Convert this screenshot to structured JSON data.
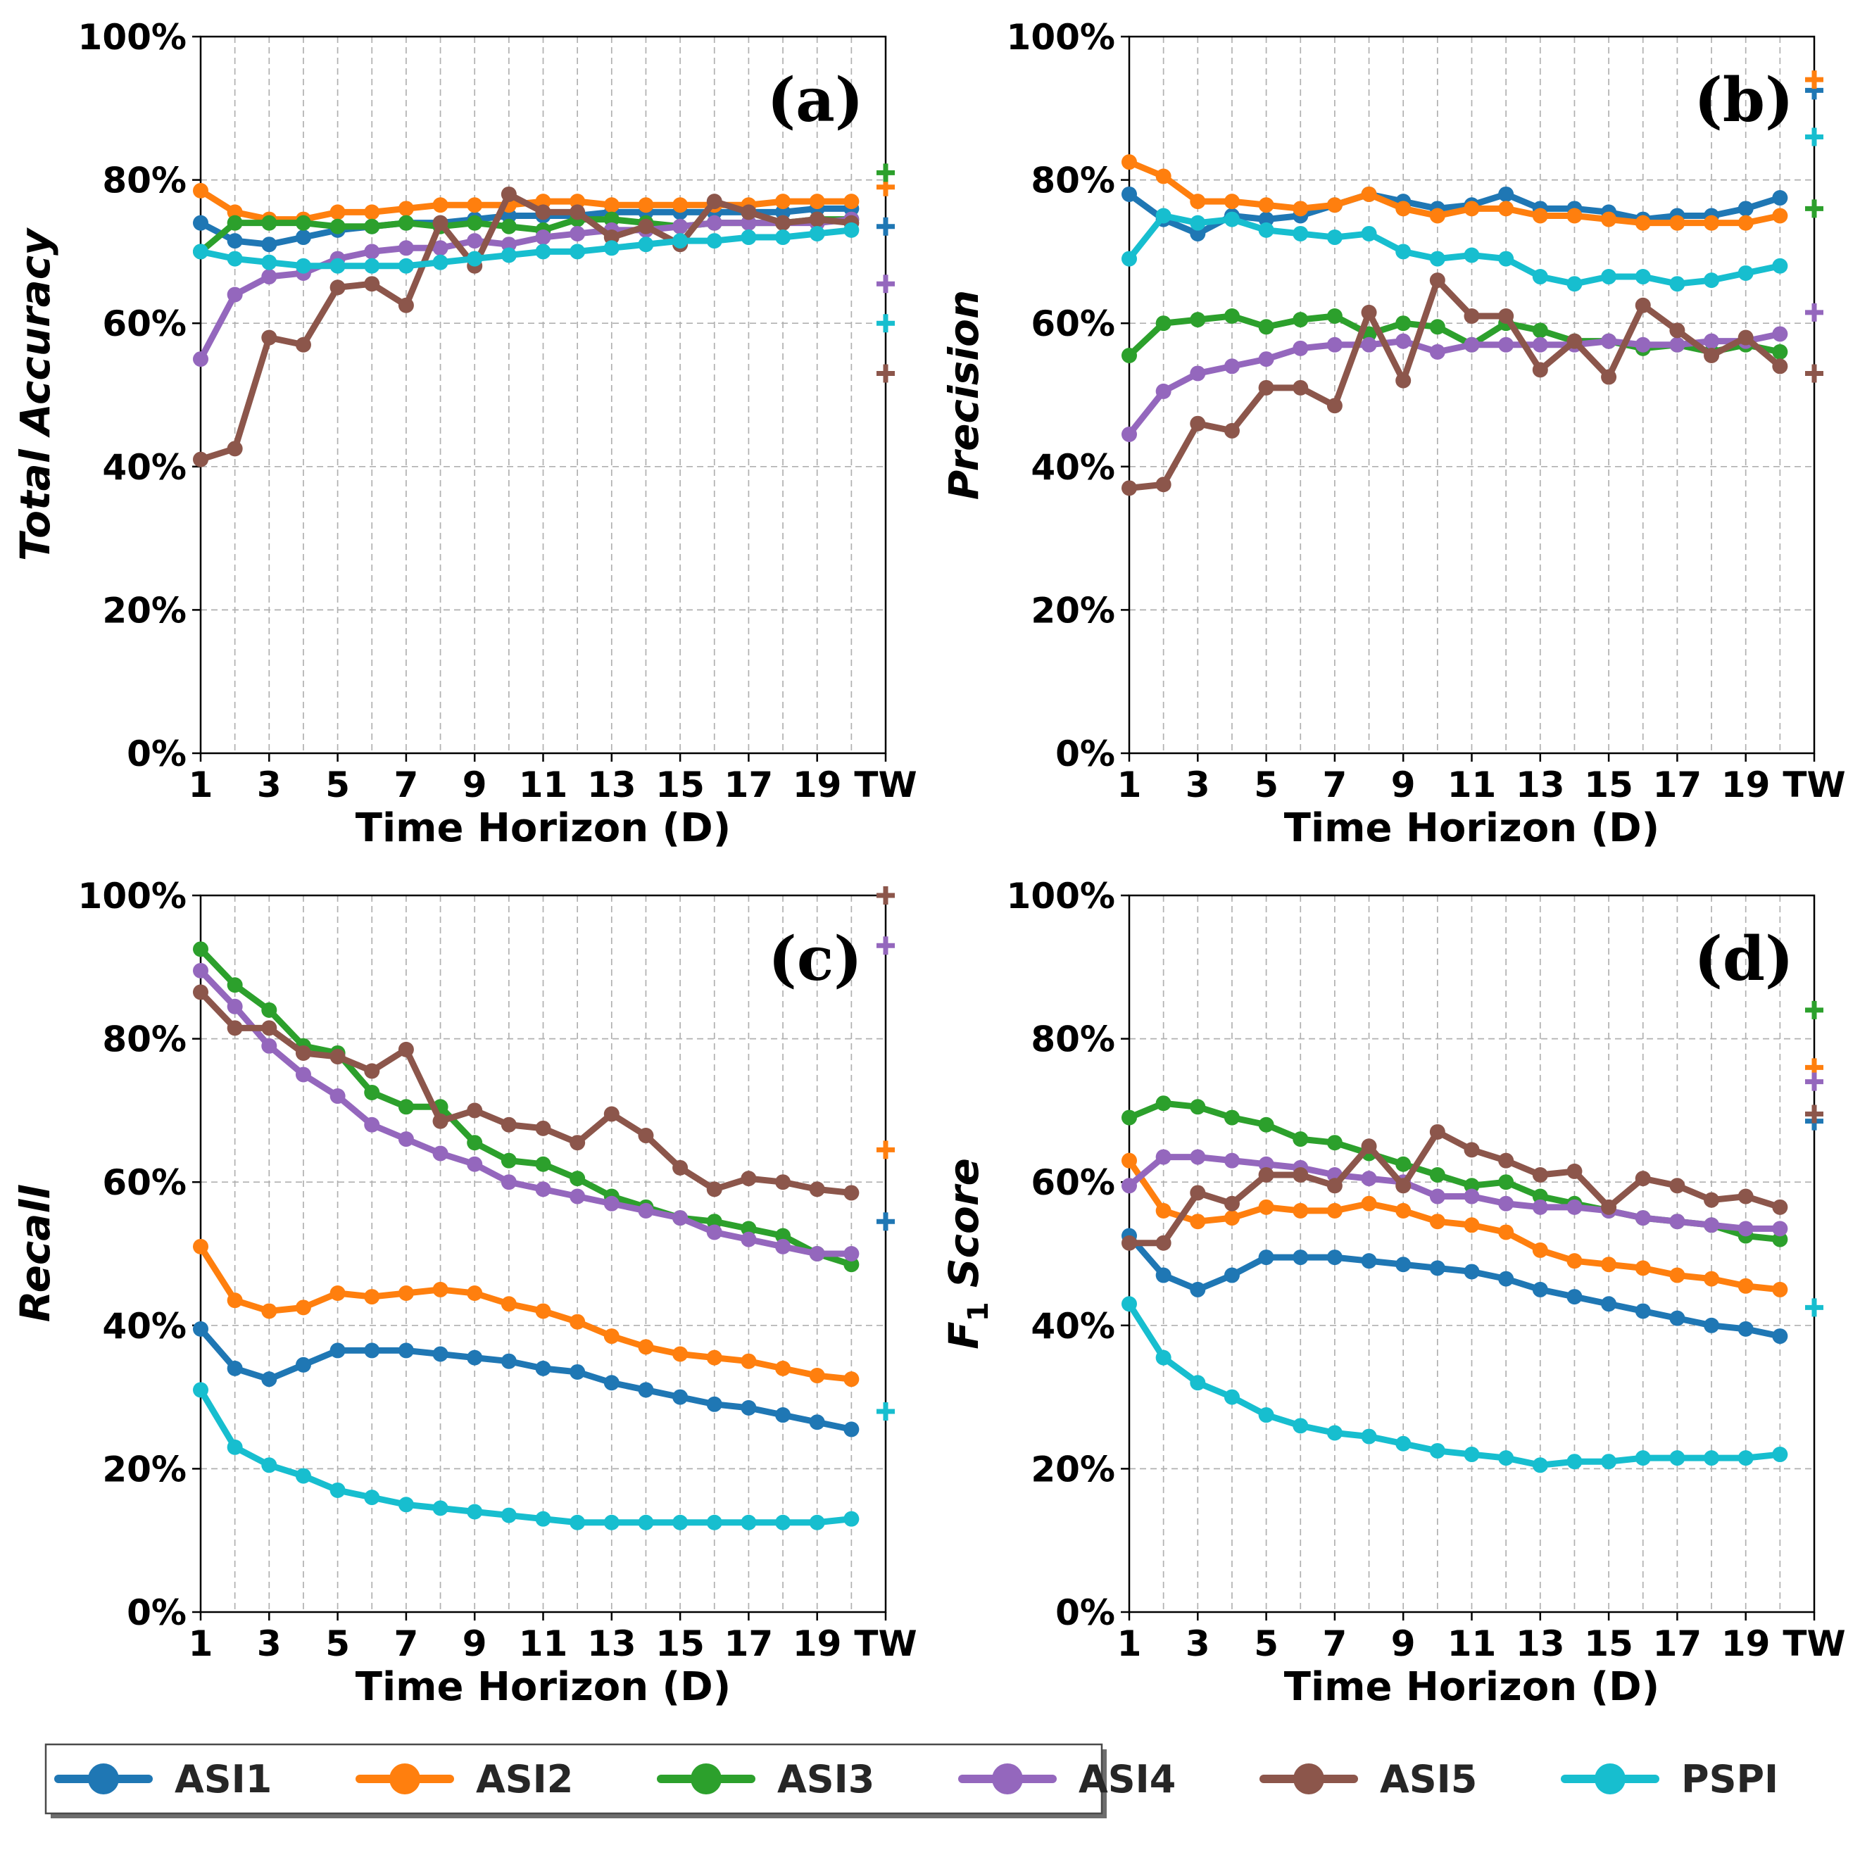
{
  "chart_data": {
    "type": "line",
    "x_ticks": [
      "1",
      "3",
      "5",
      "7",
      "9",
      "11",
      "13",
      "15",
      "17",
      "19",
      "TW"
    ],
    "x_tw_label": "TW",
    "x": [
      1,
      2,
      3,
      4,
      5,
      6,
      7,
      8,
      9,
      10,
      11,
      12,
      13,
      14,
      15,
      16,
      17,
      18,
      19,
      20
    ],
    "y_ticks": [
      "0%",
      "20%",
      "40%",
      "60%",
      "80%",
      "100%"
    ],
    "ylim": [
      0,
      100
    ],
    "xlabel": "Time Horizon (D)",
    "grid": true,
    "series_names": [
      "ASI1",
      "ASI2",
      "ASI3",
      "ASI4",
      "ASI5",
      "PSPI"
    ],
    "colors": {
      "ASI1": "#1f77b4",
      "ASI2": "#ff7f0e",
      "ASI3": "#2ca02c",
      "ASI4": "#9467bd",
      "ASI5": "#8c564b",
      "PSPI": "#17becf"
    },
    "legend": {
      "position": "bottom",
      "items": [
        "ASI1",
        "ASI2",
        "ASI3",
        "ASI4",
        "ASI5",
        "PSPI"
      ]
    },
    "panels": [
      {
        "tag": "(a)",
        "ylabel": "Total Accuracy",
        "series": [
          {
            "name": "ASI1",
            "values": [
              74,
              71.5,
              71,
              72,
              73,
              73.5,
              74,
              74,
              74.5,
              75,
              75,
              75,
              75.5,
              75.5,
              75.5,
              75.5,
              75.5,
              75.5,
              76,
              76
            ],
            "tw": 73.5
          },
          {
            "name": "ASI2",
            "values": [
              78.5,
              75.5,
              74.5,
              74.5,
              75.5,
              75.5,
              76,
              76.5,
              76.5,
              76.5,
              77,
              77,
              76.5,
              76.5,
              76.5,
              76.5,
              76.5,
              77,
              77,
              77
            ],
            "tw": 79
          },
          {
            "name": "ASI3",
            "values": [
              70,
              74,
              74,
              74,
              73.5,
              73.5,
              74,
              73.5,
              74,
              73.5,
              73,
              74.5,
              74.5,
              74,
              73.5,
              74,
              74,
              74,
              74.5,
              74.5
            ],
            "tw": 81
          },
          {
            "name": "ASI4",
            "values": [
              55,
              64,
              66.5,
              67,
              69,
              70,
              70.5,
              70.5,
              71.5,
              71,
              72,
              72.5,
              73,
              73,
              73.5,
              74,
              74,
              74,
              74,
              74.5
            ],
            "tw": 65.5
          },
          {
            "name": "ASI5",
            "values": [
              41,
              42.5,
              58,
              57,
              65,
              65.5,
              62.5,
              74,
              68,
              78,
              75.5,
              75.5,
              72,
              73.5,
              71,
              77,
              75.5,
              74,
              74.5,
              74
            ],
            "tw": 53
          },
          {
            "name": "PSPI",
            "values": [
              70,
              69,
              68.5,
              68,
              68,
              68,
              68,
              68.5,
              69,
              69.5,
              70,
              70,
              70.5,
              71,
              71.5,
              71.5,
              72,
              72,
              72.5,
              73
            ],
            "tw": 60
          }
        ]
      },
      {
        "tag": "(b)",
        "ylabel": "Precision",
        "series": [
          {
            "name": "ASI1",
            "values": [
              78,
              74.5,
              72.5,
              75,
              74.5,
              75,
              76.5,
              78,
              77,
              76,
              76.5,
              78,
              76,
              76,
              75.5,
              74.5,
              75,
              75,
              76,
              77.5
            ],
            "tw": 92.5
          },
          {
            "name": "ASI2",
            "values": [
              82.5,
              80.5,
              77,
              77,
              76.5,
              76,
              76.5,
              78,
              76,
              75,
              76,
              76,
              75,
              75,
              74.5,
              74,
              74,
              74,
              74,
              75
            ],
            "tw": 94
          },
          {
            "name": "ASI3",
            "values": [
              55.5,
              60,
              60.5,
              61,
              59.5,
              60.5,
              61,
              58.5,
              60,
              59.5,
              57,
              60,
              59,
              57.5,
              57.5,
              56.5,
              57,
              56,
              57,
              56
            ],
            "tw": 76
          },
          {
            "name": "ASI4",
            "values": [
              44.5,
              50.5,
              53,
              54,
              55,
              56.5,
              57,
              57,
              57.5,
              56,
              57,
              57,
              57,
              57,
              57.5,
              57,
              57,
              57.5,
              57.5,
              58.5
            ],
            "tw": 61.5
          },
          {
            "name": "ASI5",
            "values": [
              37,
              37.5,
              46,
              45,
              51,
              51,
              48.5,
              61.5,
              52,
              66,
              61,
              61,
              53.5,
              57.5,
              52.5,
              62.5,
              59,
              55.5,
              58,
              54
            ],
            "tw": 53
          },
          {
            "name": "PSPI",
            "values": [
              69,
              75,
              74,
              74.5,
              73,
              72.5,
              72,
              72.5,
              70,
              69,
              69.5,
              69,
              66.5,
              65.5,
              66.5,
              66.5,
              65.5,
              66,
              67,
              68
            ],
            "tw": 86
          }
        ]
      },
      {
        "tag": "(c)",
        "ylabel": "Recall",
        "series": [
          {
            "name": "ASI1",
            "values": [
              39.5,
              34,
              32.5,
              34.5,
              36.5,
              36.5,
              36.5,
              36,
              35.5,
              35,
              34,
              33.5,
              32,
              31,
              30,
              29,
              28.5,
              27.5,
              26.5,
              25.5
            ],
            "tw": 54.5
          },
          {
            "name": "ASI2",
            "values": [
              51,
              43.5,
              42,
              42.5,
              44.5,
              44,
              44.5,
              45,
              44.5,
              43,
              42,
              40.5,
              38.5,
              37,
              36,
              35.5,
              35,
              34,
              33,
              32.5
            ],
            "tw": 64.5
          },
          {
            "name": "ASI3",
            "values": [
              92.5,
              87.5,
              84,
              79,
              78,
              72.5,
              70.5,
              70.5,
              65.5,
              63,
              62.5,
              60.5,
              58,
              56.5,
              55,
              54.5,
              53.5,
              52.5,
              50,
              48.5
            ],
            "tw": 100
          },
          {
            "name": "ASI4",
            "values": [
              89.5,
              84.5,
              79,
              75,
              72,
              68,
              66,
              64,
              62.5,
              60,
              59,
              58,
              57,
              56,
              55,
              53,
              52,
              51,
              50,
              50
            ],
            "tw": 93
          },
          {
            "name": "ASI5",
            "values": [
              86.5,
              81.5,
              81.5,
              78,
              77.5,
              75.5,
              78.5,
              68.5,
              70,
              68,
              67.5,
              65.5,
              69.5,
              66.5,
              62,
              59,
              60.5,
              60,
              59,
              58.5
            ],
            "tw": 100
          },
          {
            "name": "PSPI",
            "values": [
              31,
              23,
              20.5,
              19,
              17,
              16,
              15,
              14.5,
              14,
              13.5,
              13,
              12.5,
              12.5,
              12.5,
              12.5,
              12.5,
              12.5,
              12.5,
              12.5,
              13
            ],
            "tw": 28
          }
        ]
      },
      {
        "tag": "(d)",
        "ylabel": "F",
        "ylabel_sub": "1",
        "ylabel_rest": " Score",
        "series": [
          {
            "name": "ASI1",
            "values": [
              52.5,
              47,
              45,
              47,
              49.5,
              49.5,
              49.5,
              49,
              48.5,
              48,
              47.5,
              46.5,
              45,
              44,
              43,
              42,
              41,
              40,
              39.5,
              38.5
            ],
            "tw": 68.5
          },
          {
            "name": "ASI2",
            "values": [
              63,
              56,
              54.5,
              55,
              56.5,
              56,
              56,
              57,
              56,
              54.5,
              54,
              53,
              50.5,
              49,
              48.5,
              48,
              47,
              46.5,
              45.5,
              45
            ],
            "tw": 76
          },
          {
            "name": "ASI3",
            "values": [
              69,
              71,
              70.5,
              69,
              68,
              66,
              65.5,
              64,
              62.5,
              61,
              59.5,
              60,
              58,
              57,
              56,
              55,
              54.5,
              54,
              52.5,
              52
            ],
            "tw": 84
          },
          {
            "name": "ASI4",
            "values": [
              59.5,
              63.5,
              63.5,
              63,
              62.5,
              62,
              61,
              60.5,
              60,
              58,
              58,
              57,
              56.5,
              56.5,
              56,
              55,
              54.5,
              54,
              53.5,
              53.5
            ],
            "tw": 74
          },
          {
            "name": "ASI5",
            "values": [
              51.5,
              51.5,
              58.5,
              57,
              61,
              61,
              59.5,
              65,
              59.5,
              67,
              64.5,
              63,
              61,
              61.5,
              56.5,
              60.5,
              59.5,
              57.5,
              58,
              56.5
            ],
            "tw": 69.5
          },
          {
            "name": "PSPI",
            "values": [
              43,
              35.5,
              32,
              30,
              27.5,
              26,
              25,
              24.5,
              23.5,
              22.5,
              22,
              21.5,
              20.5,
              21,
              21,
              21.5,
              21.5,
              21.5,
              21.5,
              22
            ],
            "tw": 42.5
          }
        ]
      }
    ]
  }
}
